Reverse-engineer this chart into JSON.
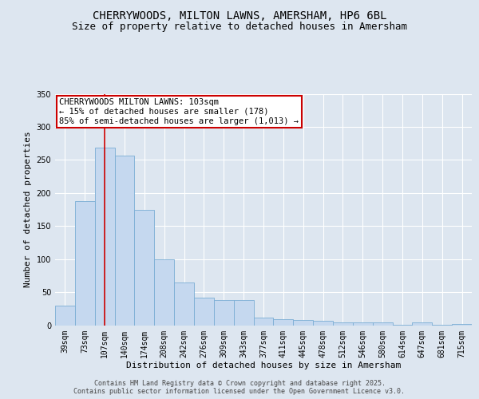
{
  "title_line1": "CHERRYWOODS, MILTON LAWNS, AMERSHAM, HP6 6BL",
  "title_line2": "Size of property relative to detached houses in Amersham",
  "xlabel": "Distribution of detached houses by size in Amersham",
  "ylabel": "Number of detached properties",
  "bar_color": "#c5d8ef",
  "bar_edge_color": "#7aadd4",
  "background_color": "#dde6f0",
  "plot_bg_color": "#dde6f0",
  "grid_color": "#ffffff",
  "categories": [
    "39sqm",
    "73sqm",
    "107sqm",
    "140sqm",
    "174sqm",
    "208sqm",
    "242sqm",
    "276sqm",
    "309sqm",
    "343sqm",
    "377sqm",
    "411sqm",
    "445sqm",
    "478sqm",
    "512sqm",
    "546sqm",
    "580sqm",
    "614sqm",
    "647sqm",
    "681sqm",
    "715sqm"
  ],
  "values": [
    30,
    188,
    268,
    256,
    174,
    99,
    65,
    42,
    38,
    38,
    12,
    9,
    8,
    7,
    4,
    4,
    4,
    1,
    4,
    1,
    2
  ],
  "property_line_index": 2,
  "annotation_text": "CHERRYWOODS MILTON LAWNS: 103sqm\n← 15% of detached houses are smaller (178)\n85% of semi-detached houses are larger (1,013) →",
  "annotation_box_color": "#ffffff",
  "annotation_box_edge": "#cc0000",
  "vline_color": "#cc0000",
  "ylim": [
    0,
    350
  ],
  "yticks": [
    0,
    50,
    100,
    150,
    200,
    250,
    300,
    350
  ],
  "footer_text": "Contains HM Land Registry data © Crown copyright and database right 2025.\nContains public sector information licensed under the Open Government Licence v3.0.",
  "title_fontsize": 10,
  "subtitle_fontsize": 9,
  "axis_label_fontsize": 8,
  "tick_fontsize": 7,
  "annotation_fontsize": 7.5,
  "footer_fontsize": 6
}
